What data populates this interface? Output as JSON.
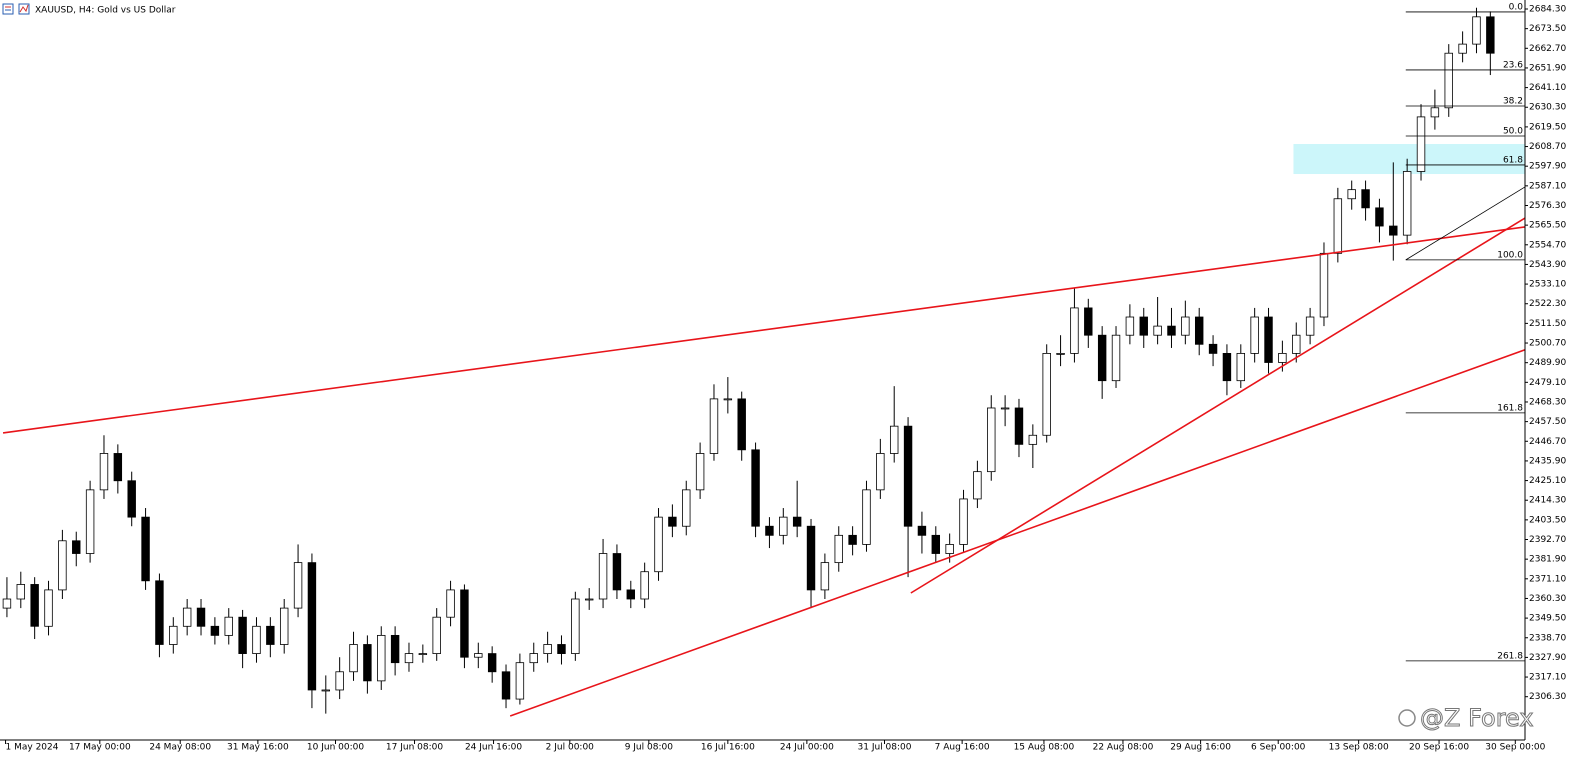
{
  "chart_data": {
    "type": "candlestick",
    "title": "XAUUSD, H4:  Gold vs US Dollar",
    "watermark": "@Z Forex",
    "xlim": [
      0,
      110
    ],
    "xticks": [
      {
        "value": 0.4,
        "label": "1 May 2024"
      },
      {
        "value": 7.2,
        "label": "17 May 00:00"
      },
      {
        "value": 13,
        "label": "24 May 08:00"
      },
      {
        "value": 18.6,
        "label": "31 May 16:00"
      },
      {
        "value": 24.2,
        "label": "10 Jun 00:00"
      },
      {
        "value": 29.9,
        "label": "17 Jun 08:00"
      },
      {
        "value": 35.6,
        "label": "24 Jun 16:00"
      },
      {
        "value": 41.1,
        "label": "2 Jul 00:00"
      },
      {
        "value": 46.8,
        "label": "9 Jul 08:00"
      },
      {
        "value": 52.5,
        "label": "16 Jul 16:00"
      },
      {
        "value": 58.2,
        "label": "24 Jul 00:00"
      },
      {
        "value": 63.8,
        "label": "31 Jul 08:00"
      },
      {
        "value": 69.4,
        "label": "7 Aug 16:00"
      },
      {
        "value": 75.3,
        "label": "15 Aug 08:00"
      },
      {
        "value": 81,
        "label": "22 Aug 08:00"
      },
      {
        "value": 86.6,
        "label": "29 Aug 16:00"
      },
      {
        "value": 92.2,
        "label": "6 Sep 00:00"
      },
      {
        "value": 98,
        "label": "13 Sep 08:00"
      },
      {
        "value": 103.8,
        "label": "20 Sep 16:00"
      },
      {
        "value": 109.3,
        "label": "30 Sep 00:00"
      }
    ],
    "ylim": [
      2282.5,
      2689.25
    ],
    "yticks": [
      {
        "value": 2684.3,
        "label": "2684.30"
      },
      {
        "value": 2673.5,
        "label": "2673.50"
      },
      {
        "value": 2662.7,
        "label": "2662.70"
      },
      {
        "value": 2651.9,
        "label": "2651.90"
      },
      {
        "value": 2641.1,
        "label": "2641.10"
      },
      {
        "value": 2630.3,
        "label": "2630.30"
      },
      {
        "value": 2619.5,
        "label": "2619.50"
      },
      {
        "value": 2608.7,
        "label": "2608.70"
      },
      {
        "value": 2597.9,
        "label": "2597.90"
      },
      {
        "value": 2587.1,
        "label": "2587.10"
      },
      {
        "value": 2576.3,
        "label": "2576.30"
      },
      {
        "value": 2565.5,
        "label": "2565.50"
      },
      {
        "value": 2554.7,
        "label": "2554.70"
      },
      {
        "value": 2543.9,
        "label": "2543.90"
      },
      {
        "value": 2533.1,
        "label": "2533.10"
      },
      {
        "value": 2522.3,
        "label": "2522.30"
      },
      {
        "value": 2511.5,
        "label": "2511.50"
      },
      {
        "value": 2500.7,
        "label": "2500.70"
      },
      {
        "value": 2489.9,
        "label": "2489.90"
      },
      {
        "value": 2479.1,
        "label": "2479.10"
      },
      {
        "value": 2468.3,
        "label": "2468.30"
      },
      {
        "value": 2457.5,
        "label": "2457.50"
      },
      {
        "value": 2446.7,
        "label": "2446.70"
      },
      {
        "value": 2435.9,
        "label": "2435.90"
      },
      {
        "value": 2425.1,
        "label": "2425.10"
      },
      {
        "value": 2414.3,
        "label": "2414.30"
      },
      {
        "value": 2403.5,
        "label": "2403.50"
      },
      {
        "value": 2392.7,
        "label": "2392.70"
      },
      {
        "value": 2381.9,
        "label": "2381.90"
      },
      {
        "value": 2371.1,
        "label": "2371.10"
      },
      {
        "value": 2360.3,
        "label": "2360.30"
      },
      {
        "value": 2349.5,
        "label": "2349.50"
      },
      {
        "value": 2338.7,
        "label": "2338.70"
      },
      {
        "value": 2327.9,
        "label": "2327.90"
      },
      {
        "value": 2317.1,
        "label": "2317.10"
      },
      {
        "value": 2306.3,
        "label": "2306.30"
      }
    ],
    "open": [
      2355,
      2360,
      2368,
      2345,
      2365,
      2392,
      2385,
      2420,
      2440,
      2425,
      2405,
      2370,
      2335,
      2345,
      2355,
      2345,
      2340,
      2350,
      2330,
      2345,
      2335,
      2355,
      2380,
      2310,
      2310,
      2320,
      2335,
      2315,
      2340,
      2325,
      2330,
      2330,
      2350,
      2365,
      2328,
      2330,
      2320,
      2305,
      2325,
      2330,
      2335,
      2330,
      2360,
      2360,
      2385,
      2365,
      2360,
      2375,
      2405,
      2400,
      2420,
      2440,
      2470,
      2470,
      2442,
      2400,
      2395,
      2405,
      2400,
      2365,
      2380,
      2395,
      2390,
      2420,
      2440,
      2455,
      2400,
      2395,
      2385,
      2390,
      2415,
      2430,
      2465,
      2465,
      2445,
      2450,
      2495,
      2495,
      2520,
      2505,
      2480,
      2505,
      2515,
      2505,
      2510,
      2505,
      2515,
      2500,
      2495,
      2480,
      2495,
      2515,
      2490,
      2495,
      2505,
      2515,
      2550,
      2580,
      2585,
      2575,
      2565,
      2560,
      2595,
      2625,
      2630,
      2660,
      2665,
      2680
    ],
    "high": [
      2372,
      2375,
      2372,
      2370,
      2398,
      2397,
      2425,
      2450,
      2445,
      2430,
      2410,
      2374,
      2350,
      2360,
      2360,
      2350,
      2355,
      2354,
      2350,
      2350,
      2360,
      2390,
      2385,
      2318,
      2328,
      2342,
      2340,
      2345,
      2345,
      2336,
      2335,
      2355,
      2370,
      2368,
      2336,
      2334,
      2324,
      2330,
      2336,
      2342,
      2340,
      2364,
      2366,
      2393,
      2390,
      2370,
      2380,
      2410,
      2412,
      2425,
      2446,
      2478,
      2482,
      2474,
      2446,
      2405,
      2410,
      2425,
      2404,
      2385,
      2400,
      2400,
      2425,
      2448,
      2477,
      2460,
      2408,
      2400,
      2396,
      2420,
      2436,
      2472,
      2472,
      2470,
      2456,
      2500,
      2505,
      2531,
      2525,
      2510,
      2510,
      2522,
      2520,
      2526,
      2520,
      2524,
      2520,
      2505,
      2500,
      2500,
      2520,
      2520,
      2502,
      2512,
      2520,
      2556,
      2586,
      2590,
      2590,
      2580,
      2600,
      2602,
      2632,
      2640,
      2665,
      2672,
      2685,
      2683
    ],
    "low": [
      2350,
      2355,
      2338,
      2340,
      2360,
      2378,
      2380,
      2415,
      2418,
      2400,
      2365,
      2328,
      2330,
      2340,
      2340,
      2335,
      2335,
      2322,
      2325,
      2328,
      2330,
      2350,
      2300,
      2297,
      2305,
      2315,
      2308,
      2310,
      2318,
      2320,
      2325,
      2326,
      2345,
      2322,
      2322,
      2314,
      2300,
      2302,
      2320,
      2325,
      2324,
      2326,
      2354,
      2355,
      2360,
      2355,
      2355,
      2370,
      2394,
      2395,
      2415,
      2436,
      2462,
      2436,
      2394,
      2388,
      2390,
      2394,
      2355,
      2360,
      2375,
      2384,
      2386,
      2415,
      2435,
      2372,
      2385,
      2380,
      2380,
      2386,
      2410,
      2425,
      2455,
      2438,
      2432,
      2446,
      2488,
      2490,
      2498,
      2470,
      2476,
      2500,
      2498,
      2500,
      2498,
      2500,
      2494,
      2488,
      2472,
      2476,
      2490,
      2484,
      2485,
      2490,
      2500,
      2510,
      2545,
      2574,
      2568,
      2556,
      2546,
      2555,
      2590,
      2618,
      2625,
      2655,
      2660,
      2648
    ],
    "close": [
      2360,
      2368,
      2345,
      2365,
      2392,
      2385,
      2420,
      2440,
      2425,
      2405,
      2370,
      2335,
      2345,
      2355,
      2345,
      2340,
      2350,
      2330,
      2345,
      2335,
      2355,
      2380,
      2310,
      2310,
      2320,
      2335,
      2315,
      2340,
      2325,
      2330,
      2330,
      2350,
      2365,
      2328,
      2330,
      2320,
      2305,
      2325,
      2330,
      2335,
      2330,
      2360,
      2360,
      2385,
      2365,
      2360,
      2375,
      2405,
      2400,
      2420,
      2440,
      2470,
      2470,
      2442,
      2400,
      2395,
      2405,
      2400,
      2365,
      2380,
      2395,
      2390,
      2420,
      2440,
      2455,
      2400,
      2395,
      2385,
      2390,
      2415,
      2430,
      2465,
      2465,
      2445,
      2450,
      2495,
      2495,
      2520,
      2505,
      2480,
      2505,
      2515,
      2505,
      2510,
      2505,
      2515,
      2500,
      2495,
      2480,
      2495,
      2515,
      2490,
      2495,
      2505,
      2515,
      2550,
      2580,
      2585,
      2575,
      2565,
      2560,
      2595,
      2625,
      2630,
      2660,
      2665,
      2680,
      2660
    ],
    "trendlines": [
      {
        "x": [
          0.22,
          110
        ],
        "y": [
          2451.3,
          2564.5
        ],
        "color": "#e8141a"
      },
      {
        "x": [
          36.8,
          110
        ],
        "y": [
          2295.7,
          2497
        ],
        "color": "#e8141a"
      },
      {
        "x": [
          65.7,
          110
        ],
        "y": [
          2363.3,
          2569.4
        ],
        "color": "#e8141a"
      },
      {
        "x": [
          101.4,
          110
        ],
        "y": [
          2546.4,
          2586.5
        ],
        "color": "#000000"
      }
    ],
    "zone": {
      "x": [
        93.3,
        110
      ],
      "y": [
        2593.6,
        2610.1
      ],
      "color": "#ccf6fa"
    },
    "fib_start": 101.4,
    "fib_levels": [
      {
        "label": "0.0",
        "price": 2682.7
      },
      {
        "label": "23.6",
        "price": 2650.8
      },
      {
        "label": "38.2",
        "price": 2631
      },
      {
        "label": "50.0",
        "price": 2614.5
      },
      {
        "label": "61.8",
        "price": 2598.6
      },
      {
        "label": "100.0",
        "price": 2546.4
      },
      {
        "label": "161.8",
        "price": 2462.3
      },
      {
        "label": "261.8",
        "price": 2326
      }
    ]
  }
}
